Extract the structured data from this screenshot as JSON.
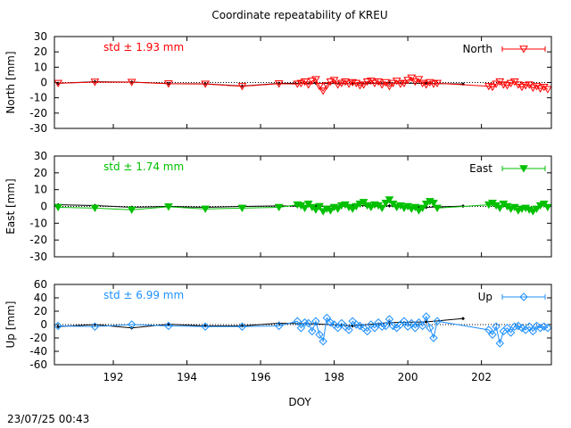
{
  "chart_data": {
    "type": "line",
    "title": "Coordinate repeatability of KREU",
    "xlabel": "DOY",
    "xlim": [
      190.4,
      203.9
    ],
    "xticks": [
      192,
      194,
      196,
      198,
      200,
      202
    ],
    "timestamp": "23/07/25 00:43",
    "panels": [
      {
        "ylabel": "North [mm]",
        "ylim": [
          -30,
          30
        ],
        "yticks": [
          30,
          20,
          10,
          0,
          -10,
          -20,
          -30
        ],
        "std_text": "std ± 1.93 mm",
        "color": "#ff0000",
        "marker": "triangle-down-open",
        "legend": "North",
        "series": {
          "x": [
            190.5,
            191.5,
            192.5,
            193.5,
            194.5,
            195.5,
            196.5,
            197.0,
            197.1,
            197.2,
            197.3,
            197.4,
            197.5,
            197.6,
            197.7,
            197.8,
            197.9,
            198.0,
            198.1,
            198.2,
            198.3,
            198.4,
            198.5,
            198.6,
            198.7,
            198.8,
            198.9,
            199.0,
            199.1,
            199.2,
            199.3,
            199.4,
            199.5,
            199.6,
            199.7,
            199.8,
            199.9,
            200.0,
            200.1,
            200.2,
            200.3,
            200.4,
            200.5,
            200.6,
            200.7,
            200.8,
            202.2,
            202.3,
            202.4,
            202.5,
            202.6,
            202.7,
            202.8,
            202.9,
            203.0,
            203.1,
            203.2,
            203.3,
            203.4,
            203.5,
            203.6,
            203.7,
            203.8
          ],
          "y": [
            -0.5,
            0.3,
            0.2,
            -0.8,
            -1.0,
            -2.5,
            -0.8,
            -1.0,
            -0.5,
            0.5,
            -1.5,
            1.0,
            2.0,
            -2.5,
            -5.5,
            -2.0,
            0.5,
            1.5,
            -1.5,
            -0.5,
            0.5,
            -1.0,
            0.0,
            -0.5,
            -2.0,
            -1.5,
            0.5,
            1.0,
            -0.5,
            0.5,
            -1.5,
            0.0,
            -2.5,
            -0.5,
            1.0,
            -1.0,
            -0.5,
            1.5,
            3.0,
            0.5,
            2.0,
            -0.5,
            -1.5,
            0.0,
            -1.0,
            -0.5,
            -2.5,
            -3.0,
            -1.0,
            0.5,
            -1.5,
            -2.0,
            -0.5,
            0.5,
            -1.5,
            -3.0,
            -2.0,
            -1.5,
            -3.5,
            -2.5,
            -4.0,
            -3.0,
            -4.5
          ]
        },
        "ref_line": {
          "x": [
            190.5,
            191.5,
            192.5,
            193.5,
            194.5,
            195.5,
            196.5,
            197.5,
            198.5,
            199.5,
            200.5,
            201.5
          ],
          "y": [
            -0.5,
            0.5,
            0.3,
            -0.7,
            -0.9,
            -2.3,
            -0.6,
            -0.5,
            -0.8,
            -0.4,
            -0.6,
            -1.0
          ]
        }
      },
      {
        "ylabel": "East [mm]",
        "ylim": [
          -30,
          30
        ],
        "yticks": [
          30,
          20,
          10,
          0,
          -10,
          -20,
          -30
        ],
        "std_text": "std ± 1.74 mm",
        "color": "#00c000",
        "marker": "triangle-down-filled",
        "legend": "East",
        "series": {
          "x": [
            190.5,
            191.5,
            192.5,
            193.5,
            194.5,
            195.5,
            196.5,
            197.0,
            197.1,
            197.2,
            197.3,
            197.4,
            197.5,
            197.6,
            197.7,
            197.8,
            197.9,
            198.0,
            198.1,
            198.2,
            198.3,
            198.4,
            198.5,
            198.6,
            198.7,
            198.8,
            198.9,
            199.0,
            199.1,
            199.2,
            199.3,
            199.4,
            199.5,
            199.6,
            199.7,
            199.8,
            199.9,
            200.0,
            200.1,
            200.2,
            200.3,
            200.4,
            200.5,
            200.6,
            200.7,
            200.8,
            202.2,
            202.3,
            202.4,
            202.5,
            202.6,
            202.7,
            202.8,
            202.9,
            203.0,
            203.1,
            203.2,
            203.3,
            203.4,
            203.5,
            203.6,
            203.7,
            203.8
          ],
          "y": [
            -0.5,
            -1.0,
            -2.0,
            -0.2,
            -1.5,
            -1.0,
            -0.5,
            1.0,
            0.5,
            -1.0,
            1.5,
            -0.5,
            -2.0,
            0.0,
            -3.0,
            -1.5,
            -2.5,
            -0.5,
            -1.5,
            0.5,
            1.0,
            -0.5,
            -1.5,
            0.0,
            1.5,
            2.5,
            0.5,
            -0.5,
            1.0,
            0.5,
            -1.0,
            2.0,
            4.0,
            1.5,
            -0.5,
            0.5,
            -1.0,
            0.0,
            -1.5,
            -0.5,
            -2.5,
            -1.0,
            1.5,
            3.0,
            2.0,
            -1.0,
            1.0,
            2.0,
            0.5,
            -1.0,
            1.5,
            0.0,
            -1.5,
            -0.5,
            -2.5,
            -1.5,
            -1.0,
            -2.0,
            -3.0,
            -1.5,
            0.5,
            1.5,
            -0.5
          ]
        },
        "ref_line": {
          "x": [
            190.5,
            191.5,
            192.5,
            193.5,
            194.5,
            195.5,
            196.5,
            197.5,
            198.5,
            199.5,
            200.5,
            201.5
          ],
          "y": [
            1.0,
            0.5,
            -0.5,
            0.0,
            -0.5,
            0.0,
            0.3,
            0.0,
            0.5,
            0.3,
            -0.5,
            0.2
          ]
        }
      },
      {
        "ylabel": "Up [mm]",
        "ylim": [
          -60,
          60
        ],
        "yticks": [
          60,
          40,
          20,
          0,
          -20,
          -40,
          -60
        ],
        "std_text": "std ± 6.99 mm",
        "color": "#1e90ff",
        "marker": "diamond-open",
        "legend": "Up",
        "series": {
          "x": [
            190.5,
            191.5,
            192.5,
            193.5,
            194.5,
            195.5,
            196.5,
            197.0,
            197.1,
            197.2,
            197.3,
            197.4,
            197.5,
            197.6,
            197.7,
            197.8,
            197.9,
            198.0,
            198.1,
            198.2,
            198.3,
            198.4,
            198.5,
            198.6,
            198.7,
            198.8,
            198.9,
            199.0,
            199.1,
            199.2,
            199.3,
            199.4,
            199.5,
            199.6,
            199.7,
            199.8,
            199.9,
            200.0,
            200.1,
            200.2,
            200.3,
            200.4,
            200.5,
            200.6,
            200.7,
            200.8,
            202.2,
            202.3,
            202.4,
            202.5,
            202.6,
            202.7,
            202.8,
            202.9,
            203.0,
            203.1,
            203.2,
            203.3,
            203.4,
            203.5,
            203.6,
            203.7,
            203.8
          ],
          "y": [
            -2.0,
            -3.0,
            0.0,
            -2.0,
            -3.0,
            -3.0,
            -2.0,
            5.0,
            -5.0,
            3.0,
            2.0,
            -10.0,
            5.0,
            -15.0,
            -25.0,
            10.0,
            3.0,
            0.0,
            -5.0,
            2.0,
            -3.0,
            -8.0,
            5.0,
            0.0,
            -2.0,
            -5.0,
            -10.0,
            0.0,
            -5.0,
            3.0,
            -3.0,
            -2.0,
            8.0,
            -2.0,
            -5.0,
            0.0,
            5.0,
            -3.0,
            2.0,
            -5.0,
            3.0,
            -2.0,
            12.0,
            -5.0,
            -20.0,
            5.0,
            -8.0,
            -15.0,
            -3.0,
            -28.0,
            -10.0,
            -5.0,
            -12.0,
            -3.0,
            -2.0,
            -5.0,
            -8.0,
            -3.0,
            -10.0,
            -2.0,
            -5.0,
            -3.0,
            -5.0
          ]
        },
        "ref_line": {
          "x": [
            190.5,
            191.5,
            192.5,
            193.5,
            194.5,
            195.5,
            196.5,
            197.5,
            198.5,
            199.5,
            200.5,
            201.5
          ],
          "y": [
            -3.0,
            0.0,
            -5.0,
            0.5,
            -2.0,
            -2.0,
            2.0,
            1.0,
            -2.0,
            3.0,
            4.0,
            9.0
          ]
        }
      }
    ]
  }
}
